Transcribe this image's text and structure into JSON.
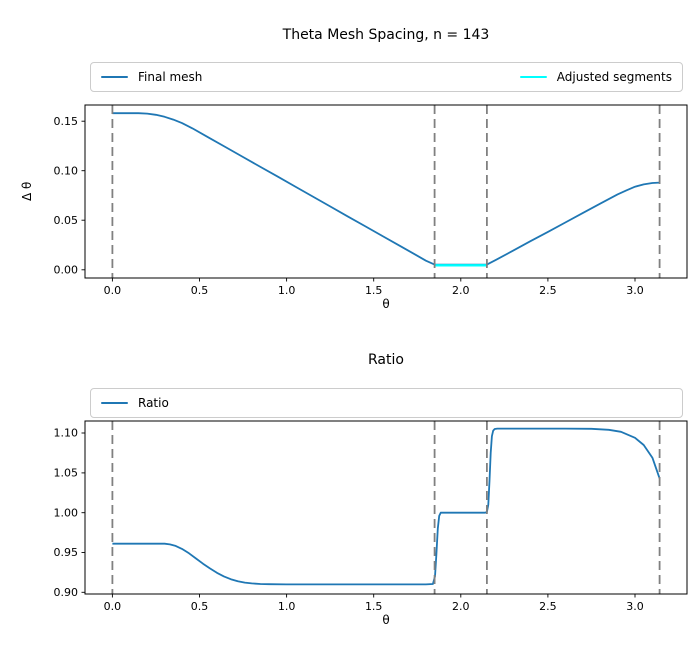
{
  "figure": {
    "colors": {
      "line_blue": "#1f77b4",
      "line_cyan": "#00ffff",
      "vline_gray": "#808080",
      "spine": "#000000",
      "legend_border": "#cccccc",
      "background": "#ffffff",
      "text": "#000000"
    }
  },
  "chart_data": [
    {
      "type": "line",
      "title": "Theta Mesh Spacing, n = 143",
      "xlabel": "θ",
      "ylabel": "Δ θ",
      "xlim": [
        -0.1571,
        3.2987
      ],
      "ylim": [
        -0.0083,
        0.1663
      ],
      "grid": false,
      "legend_position": "above-expanded",
      "xtick_values": [
        0,
        0.5,
        1.0,
        1.5,
        2.0,
        2.5,
        3.0
      ],
      "xtick_labels": [
        "0.0",
        "0.5",
        "1.0",
        "1.5",
        "2.0",
        "2.5",
        "3.0"
      ],
      "ytick_values": [
        0.0,
        0.05,
        0.1,
        0.15
      ],
      "ytick_labels": [
        "0.00",
        "0.05",
        "0.10",
        "0.15"
      ],
      "vlines": [
        0,
        1.85,
        2.15,
        3.1416
      ],
      "legend": [
        {
          "label": "Final mesh",
          "color": "#1f77b4"
        },
        {
          "label": "Adjusted segments",
          "color": "#00ffff"
        }
      ],
      "series": [
        {
          "name": "final-mesh",
          "color": "#1f77b4",
          "width": 1.8,
          "points": [
            [
              0.0,
              0.158
            ],
            [
              0.1,
              0.158
            ],
            [
              0.15,
              0.158
            ],
            [
              0.2,
              0.1576
            ],
            [
              0.25,
              0.1564
            ],
            [
              0.3,
              0.1544
            ],
            [
              0.35,
              0.1516
            ],
            [
              0.4,
              0.148
            ],
            [
              0.46,
              0.1427
            ],
            [
              0.55,
              0.1337
            ],
            [
              0.65,
              0.1238
            ],
            [
              0.75,
              0.1138
            ],
            [
              0.85,
              0.1038
            ],
            [
              0.95,
              0.0939
            ],
            [
              1.05,
              0.0839
            ],
            [
              1.15,
              0.074
            ],
            [
              1.25,
              0.064
            ],
            [
              1.35,
              0.054
            ],
            [
              1.45,
              0.0441
            ],
            [
              1.55,
              0.0341
            ],
            [
              1.65,
              0.0242
            ],
            [
              1.75,
              0.0142
            ],
            [
              1.8,
              0.0092
            ],
            [
              1.85,
              0.0052
            ],
            [
              2.0,
              0.0052
            ],
            [
              2.15,
              0.0052
            ],
            [
              2.2,
              0.0098
            ],
            [
              2.3,
              0.0193
            ],
            [
              2.4,
              0.0288
            ],
            [
              2.5,
              0.0382
            ],
            [
              2.6,
              0.0477
            ],
            [
              2.7,
              0.0572
            ],
            [
              2.8,
              0.0667
            ],
            [
              2.9,
              0.0761
            ],
            [
              2.95,
              0.0801
            ],
            [
              3.0,
              0.0838
            ],
            [
              3.05,
              0.0862
            ],
            [
              3.1,
              0.0876
            ],
            [
              3.1416,
              0.088
            ]
          ]
        },
        {
          "name": "adjusted-segments",
          "color": "#00ffff",
          "width": 2.4,
          "points": [
            [
              1.85,
              0.0045
            ],
            [
              2.15,
              0.0045
            ]
          ]
        }
      ]
    },
    {
      "type": "line",
      "title": "Ratio",
      "xlabel": "θ",
      "ylabel": "",
      "xlim": [
        -0.1571,
        3.2987
      ],
      "ylim": [
        0.8979,
        1.1151
      ],
      "grid": false,
      "legend_position": "above-expanded",
      "xtick_values": [
        0,
        0.5,
        1.0,
        1.5,
        2.0,
        2.5,
        3.0
      ],
      "xtick_labels": [
        "0.0",
        "0.5",
        "1.0",
        "1.5",
        "2.0",
        "2.5",
        "3.0"
      ],
      "ytick_values": [
        0.9,
        0.95,
        1.0,
        1.05,
        1.1
      ],
      "ytick_labels": [
        "0.90",
        "0.95",
        "1.00",
        "1.05",
        "1.10"
      ],
      "vlines": [
        0,
        1.85,
        2.15,
        3.1416
      ],
      "legend": [
        {
          "label": "Ratio",
          "color": "#1f77b4"
        }
      ],
      "series": [
        {
          "name": "ratio",
          "color": "#1f77b4",
          "width": 1.8,
          "points": [
            [
              0.0,
              0.961
            ],
            [
              0.2,
              0.961
            ],
            [
              0.3,
              0.961
            ],
            [
              0.33,
              0.9602
            ],
            [
              0.36,
              0.9585
            ],
            [
              0.4,
              0.9545
            ],
            [
              0.44,
              0.949
            ],
            [
              0.48,
              0.9425
            ],
            [
              0.52,
              0.936
            ],
            [
              0.56,
              0.93
            ],
            [
              0.6,
              0.9245
            ],
            [
              0.64,
              0.92
            ],
            [
              0.68,
              0.9165
            ],
            [
              0.72,
              0.914
            ],
            [
              0.76,
              0.9122
            ],
            [
              0.8,
              0.9112
            ],
            [
              0.85,
              0.9105
            ],
            [
              0.9,
              0.9102
            ],
            [
              1.0,
              0.91
            ],
            [
              1.3,
              0.91
            ],
            [
              1.6,
              0.91
            ],
            [
              1.8,
              0.91
            ],
            [
              1.84,
              0.9105
            ],
            [
              1.852,
              0.92
            ],
            [
              1.86,
              0.948
            ],
            [
              1.868,
              0.98
            ],
            [
              1.876,
              0.996
            ],
            [
              1.885,
              1.0
            ],
            [
              2.0,
              1.0
            ],
            [
              2.14,
              1.0
            ],
            [
              2.15,
              1.001
            ],
            [
              2.158,
              1.01
            ],
            [
              2.165,
              1.04
            ],
            [
              2.172,
              1.075
            ],
            [
              2.179,
              1.096
            ],
            [
              2.186,
              1.103
            ],
            [
              2.195,
              1.105
            ],
            [
              2.21,
              1.1055
            ],
            [
              2.4,
              1.1056
            ],
            [
              2.6,
              1.1056
            ],
            [
              2.75,
              1.1053
            ],
            [
              2.85,
              1.104
            ],
            [
              2.92,
              1.1015
            ],
            [
              3.0,
              1.094
            ],
            [
              3.05,
              1.085
            ],
            [
              3.1,
              1.069
            ],
            [
              3.1416,
              1.043
            ]
          ]
        }
      ]
    }
  ]
}
